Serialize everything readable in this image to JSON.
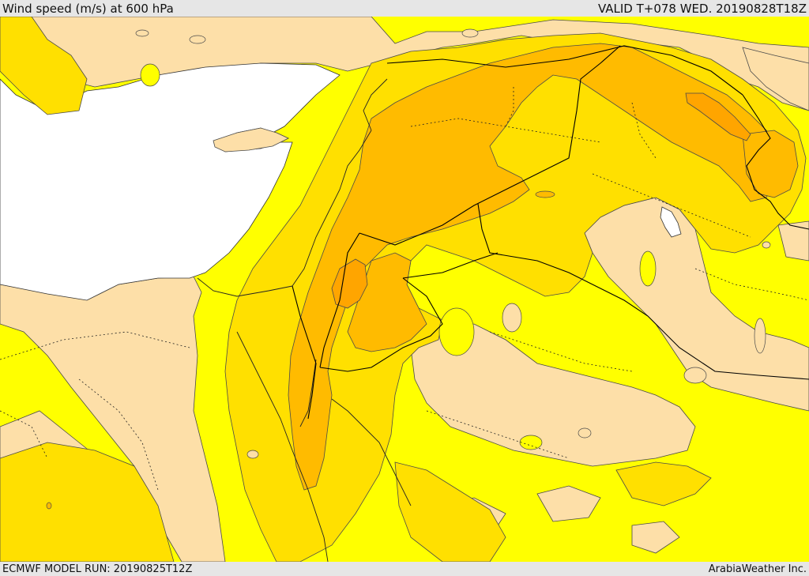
{
  "header": {
    "title": "Wind speed (m/s) at 600 hPa",
    "valid": "VALID T+078 WED. 20190828T18Z"
  },
  "footer": {
    "model_run": "ECMWF MODEL RUN: 20190825T12Z",
    "credit": "ArabiaWeather Inc."
  },
  "colors": {
    "sea": "#ffffff",
    "band_low": "#fddfa8",
    "band_mid": "#ffff00",
    "band_high": "#ffe000",
    "band_higher": "#ffbb00",
    "band_highest": "#ffa500",
    "contour": "#4a4a4a",
    "border": "#000000"
  }
}
